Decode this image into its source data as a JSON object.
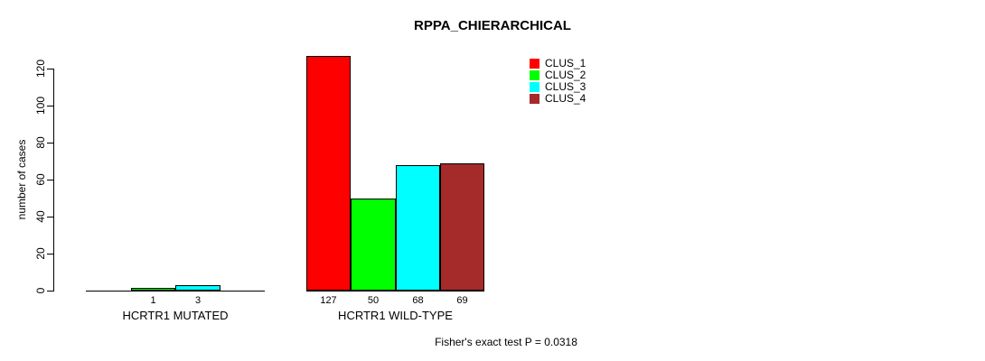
{
  "chart_data": {
    "type": "bar",
    "title": "RPPA_CHIERARCHICAL",
    "ylabel": "number of cases",
    "xlabel": "",
    "ylim": [
      0,
      120
    ],
    "yticks": [
      0,
      20,
      40,
      60,
      80,
      100,
      120
    ],
    "grid": false,
    "legend_position": "top-right",
    "categories": [
      "HCRTR1 MUTATED",
      "HCRTR1 WILD-TYPE"
    ],
    "series": [
      {
        "name": "CLUS_1",
        "color": "#FF0000",
        "values": [
          0,
          127
        ]
      },
      {
        "name": "CLUS_2",
        "color": "#00FF00",
        "values": [
          1,
          50
        ]
      },
      {
        "name": "CLUS_3",
        "color": "#00FFFF",
        "values": [
          3,
          68
        ]
      },
      {
        "name": "CLUS_4",
        "color": "#A52A2A",
        "values": [
          0,
          69
        ]
      }
    ],
    "show_zero_value_labels": false,
    "annotation": "Fisher's exact test P = 0.0318"
  },
  "colors": {
    "axis": "#000000",
    "text": "#000000",
    "background": "#FFFFFF"
  }
}
